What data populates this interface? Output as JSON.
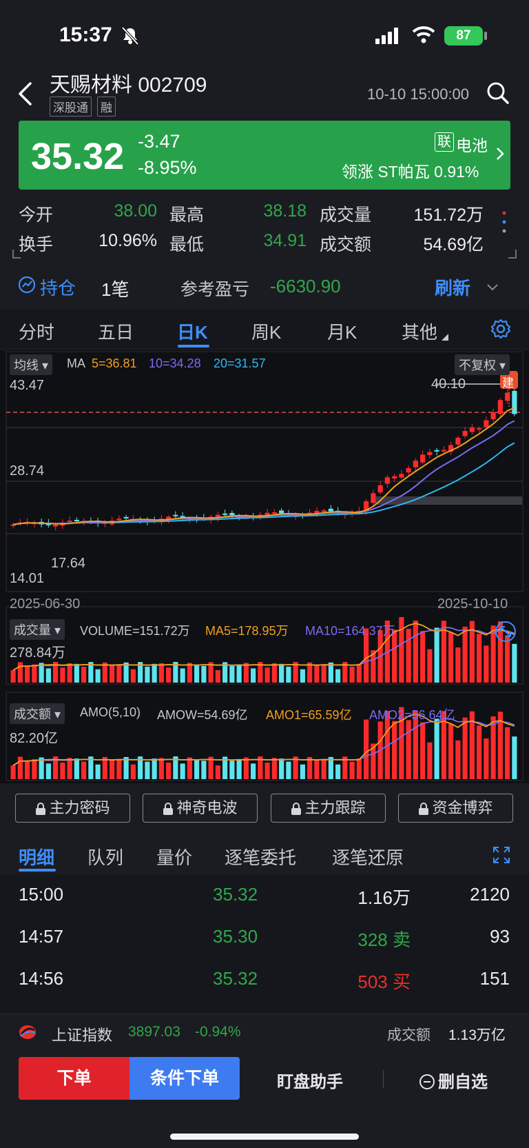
{
  "status_bar": {
    "time": "15:37",
    "battery": "87"
  },
  "header": {
    "title": "天赐材料 002709",
    "tags": [
      "深股通",
      "融"
    ],
    "datetime": "10-10 15:00:00"
  },
  "quote": {
    "price": "35.32",
    "change": "-3.47",
    "change_pct": "-8.95%",
    "sector_badge": "联",
    "sector": "电池",
    "leader": "领涨 ST帕瓦 0.91%",
    "colors": {
      "down": "#27a24b",
      "up": "#e8302a"
    }
  },
  "stats": [
    {
      "label": "今开",
      "value": "38.00"
    },
    {
      "label": "最高",
      "value": "38.18"
    },
    {
      "label": "成交量",
      "value": "151.72万"
    },
    {
      "label": "换手",
      "value": "10.96%"
    },
    {
      "label": "最低",
      "value": "34.91"
    },
    {
      "label": "成交额",
      "value": "54.69亿"
    }
  ],
  "position": {
    "label": "持仓",
    "count": "1笔",
    "pnl_label": "参考盈亏",
    "pnl_value": "-6630.90",
    "refresh": "刷新"
  },
  "tabs": [
    "分时",
    "五日",
    "日K",
    "周K",
    "月K",
    "其他"
  ],
  "active_tab": "日K",
  "kchart": {
    "ma_selector": "均线",
    "ma_text": "MA",
    "ma5": "5=36.81",
    "ma10": "10=34.28",
    "ma20": "20=31.57",
    "adjust": "不复权",
    "y_top": "43.47",
    "y_mid": "28.74",
    "y_bottom": "14.01",
    "low_mark": "17.64",
    "high_mark": "40.10",
    "flag": "建",
    "date_start": "2025-06-30",
    "date_end": "2025-10-10",
    "colors": {
      "ma5": "#f0a020",
      "ma10": "#7b6cf0",
      "ma20": "#2fb8f0",
      "up": "#ff2a2a",
      "down": "#5ee4ee"
    }
  },
  "volume_panel": {
    "selector": "成交量",
    "volume": "VOLUME=151.72万",
    "ma5": "MA5=178.95万",
    "ma10": "MA10=164.37万",
    "y_top": "278.84万"
  },
  "amount_panel": {
    "selector": "成交额",
    "params": "AMO(5,10)",
    "amow": "AMOW=54.69亿",
    "amo1": "AMO1=65.59亿",
    "amo2": "AMO2=56.64亿",
    "y_top": "82.20亿"
  },
  "locked_tools": [
    "主力密码",
    "神奇电波",
    "主力跟踪",
    "资金博弈"
  ],
  "detail_tabs": [
    "明细",
    "队列",
    "量价",
    "逐笔委托",
    "逐笔还原"
  ],
  "trades": [
    {
      "time": "15:00",
      "price": "35.32",
      "volume": "1.16万",
      "count": "2120",
      "side": ""
    },
    {
      "time": "14:57",
      "price": "35.30",
      "volume": "328 卖",
      "count": "93",
      "side": "sell"
    },
    {
      "time": "14:56",
      "price": "35.32",
      "volume": "503 买",
      "count": "151",
      "side": "buy"
    }
  ],
  "index_bar": {
    "name": "上证指数",
    "value": "3897.03",
    "change_pct": "-0.94%",
    "amount_label": "成交额",
    "amount": "1.13万亿"
  },
  "actions": {
    "order": "下单",
    "conditional": "条件下单",
    "assistant": "盯盘助手",
    "remove": "删自选"
  }
}
